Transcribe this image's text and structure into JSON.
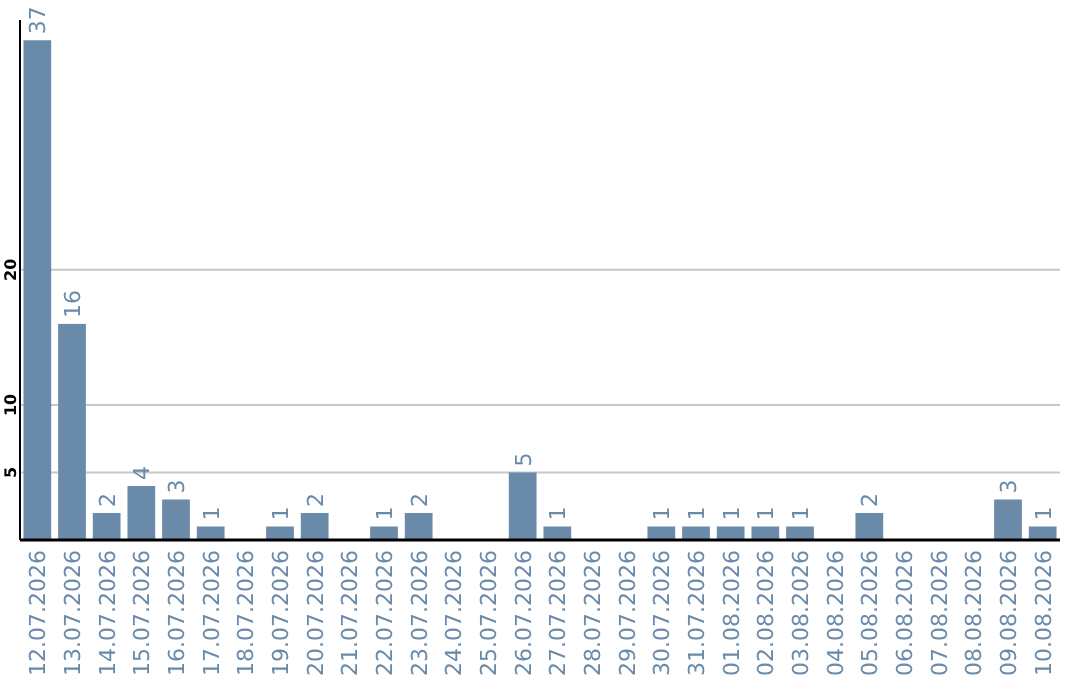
{
  "chart_data": {
    "type": "bar",
    "categories": [
      "12.07.2026",
      "13.07.2026",
      "14.07.2026",
      "15.07.2026",
      "16.07.2026",
      "17.07.2026",
      "18.07.2026",
      "19.07.2026",
      "20.07.2026",
      "21.07.2026",
      "22.07.2026",
      "23.07.2026",
      "24.07.2026",
      "25.07.2026",
      "26.07.2026",
      "27.07.2026",
      "28.07.2026",
      "29.07.2026",
      "30.07.2026",
      "31.07.2026",
      "01.08.2026",
      "02.08.2026",
      "03.08.2026",
      "04.08.2026",
      "05.08.2026",
      "06.08.2026",
      "07.08.2026",
      "08.08.2026",
      "09.08.2026",
      "10.08.2026"
    ],
    "values": [
      37,
      16,
      2,
      4,
      3,
      1,
      null,
      1,
      2,
      null,
      1,
      2,
      null,
      null,
      5,
      1,
      null,
      null,
      1,
      1,
      1,
      1,
      1,
      null,
      2,
      null,
      null,
      null,
      3,
      1
    ],
    "color": "#6a8aaa",
    "ylim": [
      0,
      38.5
    ],
    "yticks": [
      5,
      10,
      20
    ],
    "grid": "y",
    "data_labels": true
  }
}
